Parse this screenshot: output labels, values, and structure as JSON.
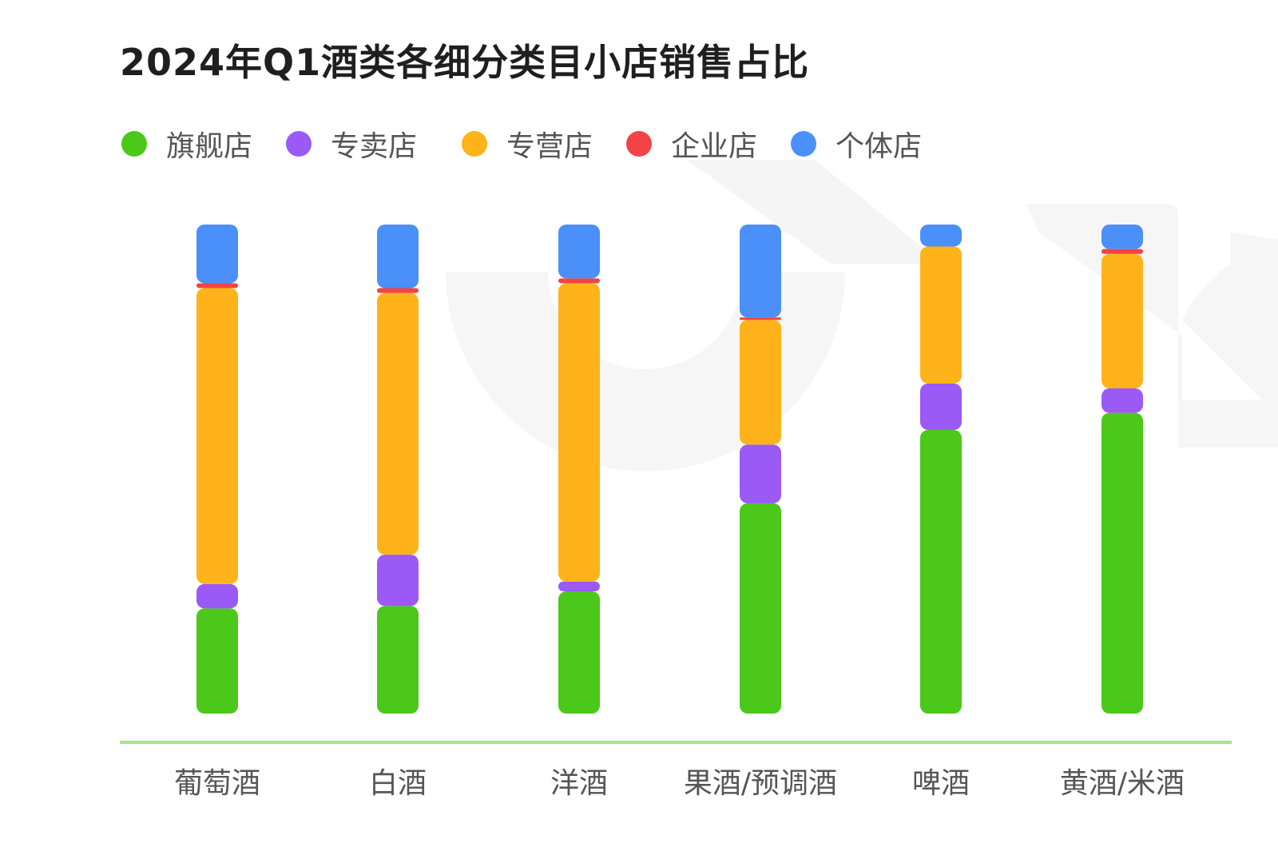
{
  "chart_data": {
    "type": "bar",
    "stacked": true,
    "normalized": true,
    "title": "2024年Q1酒类各细分类目小店销售占比",
    "categories": [
      "葡萄酒",
      "白酒",
      "洋酒",
      "果酒/预调酒",
      "啤酒",
      "黄酒/米酒"
    ],
    "legend_position": "top-left",
    "grid": false,
    "ylim": [
      0,
      100
    ],
    "unit": "%",
    "series": [
      {
        "name": "旗舰店",
        "color": "#4cc81a",
        "values": [
          21.5,
          22,
          25,
          43,
          58,
          61.5
        ]
      },
      {
        "name": "专卖店",
        "color": "#9b59f6",
        "values": [
          5,
          10.5,
          2,
          12,
          9.5,
          5
        ]
      },
      {
        "name": "专营店",
        "color": "#ffb31a",
        "values": [
          60.5,
          53.5,
          61,
          25.5,
          28,
          27.5
        ]
      },
      {
        "name": "企业店",
        "color": "#f24444",
        "values": [
          1,
          1,
          1,
          0.5,
          0,
          1
        ]
      },
      {
        "name": "个体店",
        "color": "#4a90f8",
        "values": [
          12,
          13,
          11,
          19,
          4.5,
          5
        ]
      }
    ]
  },
  "colors": {
    "axis_line": "#a8e38f",
    "watermark": "#f4f4f4"
  }
}
